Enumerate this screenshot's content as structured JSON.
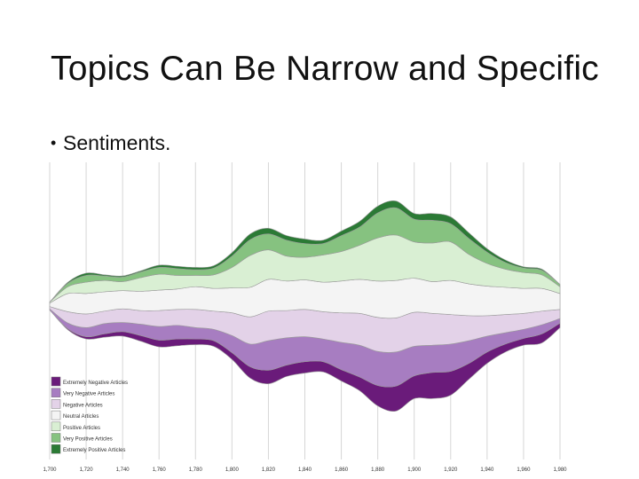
{
  "slide": {
    "title": "Topics Can Be Narrow and Specific",
    "bullet": "Sentiments."
  },
  "chart_data": {
    "type": "area",
    "x": [
      1700,
      1710,
      1720,
      1730,
      1740,
      1750,
      1760,
      1770,
      1780,
      1790,
      1800,
      1810,
      1820,
      1830,
      1840,
      1850,
      1860,
      1870,
      1880,
      1890,
      1900,
      1910,
      1920,
      1930,
      1940,
      1950,
      1960,
      1970,
      1980
    ],
    "x_tick_labels": [
      "1,700",
      "1,720",
      "1,740",
      "1,760",
      "1,780",
      "1,800",
      "1,820",
      "1,840",
      "1,860",
      "1,880",
      "1,900",
      "1,920",
      "1,940",
      "1,960",
      "1,980"
    ],
    "x_ticks": [
      1700,
      1720,
      1740,
      1760,
      1780,
      1800,
      1820,
      1840,
      1860,
      1880,
      1900,
      1920,
      1940,
      1960,
      1980
    ],
    "legend_position": "bottom-left",
    "series": [
      {
        "name": "Extremely Negative Articles",
        "color": "#6a1b7a",
        "values": [
          0,
          1,
          2,
          3,
          4,
          5,
          6,
          6,
          5,
          5,
          6,
          10,
          12,
          10,
          10,
          9,
          10,
          12,
          18,
          22,
          20,
          23,
          21,
          14,
          10,
          7,
          6,
          8,
          4
        ]
      },
      {
        "name": "Very Negative Articles",
        "color": "#a77dc1",
        "values": [
          1,
          5,
          8,
          9,
          8,
          10,
          12,
          12,
          10,
          10,
          15,
          20,
          26,
          24,
          22,
          20,
          24,
          28,
          30,
          30,
          26,
          24,
          24,
          20,
          14,
          10,
          8,
          8,
          4
        ]
      },
      {
        "name": "Negative Articles",
        "color": "#e3d2e8",
        "values": [
          2,
          10,
          12,
          11,
          12,
          12,
          14,
          14,
          16,
          16,
          20,
          24,
          26,
          24,
          24,
          24,
          26,
          28,
          30,
          30,
          30,
          28,
          26,
          22,
          18,
          16,
          14,
          12,
          8
        ]
      },
      {
        "name": "Neutral Articles",
        "color": "#f4f4f4",
        "values": [
          3,
          16,
          18,
          17,
          16,
          17,
          18,
          18,
          20,
          20,
          22,
          26,
          28,
          26,
          26,
          26,
          28,
          30,
          32,
          33,
          30,
          28,
          30,
          28,
          26,
          24,
          22,
          20,
          14
        ]
      },
      {
        "name": "Positive Articles",
        "color": "#d9efd3",
        "values": [
          1,
          6,
          10,
          10,
          8,
          12,
          14,
          12,
          10,
          12,
          18,
          28,
          26,
          22,
          20,
          24,
          26,
          30,
          38,
          40,
          32,
          34,
          34,
          26,
          20,
          16,
          14,
          12,
          6
        ]
      },
      {
        "name": "Very Positive Articles",
        "color": "#86c280",
        "values": [
          0,
          3,
          6,
          4,
          4,
          5,
          6,
          6,
          5,
          6,
          10,
          14,
          14,
          14,
          12,
          10,
          14,
          16,
          22,
          24,
          20,
          20,
          16,
          14,
          10,
          6,
          4,
          4,
          2
        ]
      },
      {
        "name": "Extremely Positive Articles",
        "color": "#2b7a35",
        "values": [
          0,
          1,
          2,
          1,
          1,
          1,
          2,
          2,
          2,
          2,
          3,
          5,
          5,
          4,
          4,
          3,
          4,
          5,
          6,
          6,
          5,
          6,
          6,
          5,
          3,
          2,
          1,
          1,
          0
        ]
      }
    ]
  }
}
